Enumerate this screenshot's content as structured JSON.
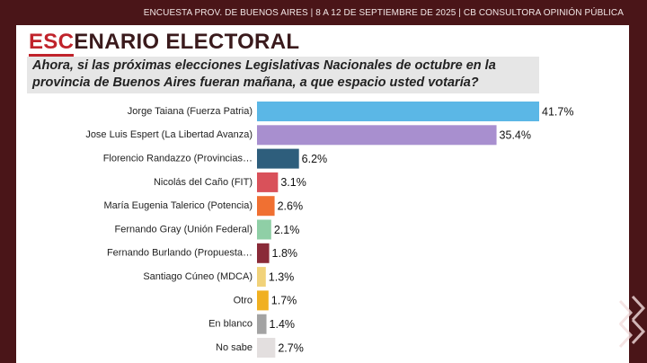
{
  "header": "ENCUESTA PROV. DE BUENOS AIRES | 8 A 12 DE SEPTIEMBRE DE 2025 | CB CONSULTORA OPINIÓN PÚBLICA",
  "chart_data": {
    "type": "bar",
    "orientation": "horizontal",
    "title_highlight": "ESC",
    "title_rest": "ENARIO ELECTORAL",
    "subtitle": "Ahora, si las próximas elecciones Legislativas Nacionales de octubre en la provincia de Buenos Aires fueran mañana, a que espacio usted votaría?",
    "categories": [
      "Jorge Taiana (Fuerza Patria)",
      "Jose Luis Espert (La Libertad Avanza)",
      "Florencio Randazzo (Provincias…",
      "Nicolás del Caño (FIT)",
      "María Eugenia Talerico (Potencia)",
      "Fernando Gray (Unión Federal)",
      "Fernando Burlando (Propuesta…",
      "Santiago Cúneo (MDCA)",
      "Otro",
      "En blanco",
      "No sabe"
    ],
    "values": [
      41.7,
      35.4,
      6.2,
      3.1,
      2.6,
      2.1,
      1.8,
      1.3,
      1.7,
      1.4,
      2.7
    ],
    "value_labels": [
      "41.7%",
      "35.4%",
      "6.2%",
      "3.1%",
      "2.6%",
      "2.1%",
      "1.8%",
      "1.3%",
      "1.7%",
      "1.4%",
      "2.7%"
    ],
    "colors": [
      "#5bb7e6",
      "#a88fcf",
      "#2e5e7c",
      "#d9515a",
      "#f07032",
      "#8fcfa6",
      "#8a2a38",
      "#f1d27a",
      "#f0b021",
      "#a3a3a3",
      "#e3dfdf"
    ]
  }
}
